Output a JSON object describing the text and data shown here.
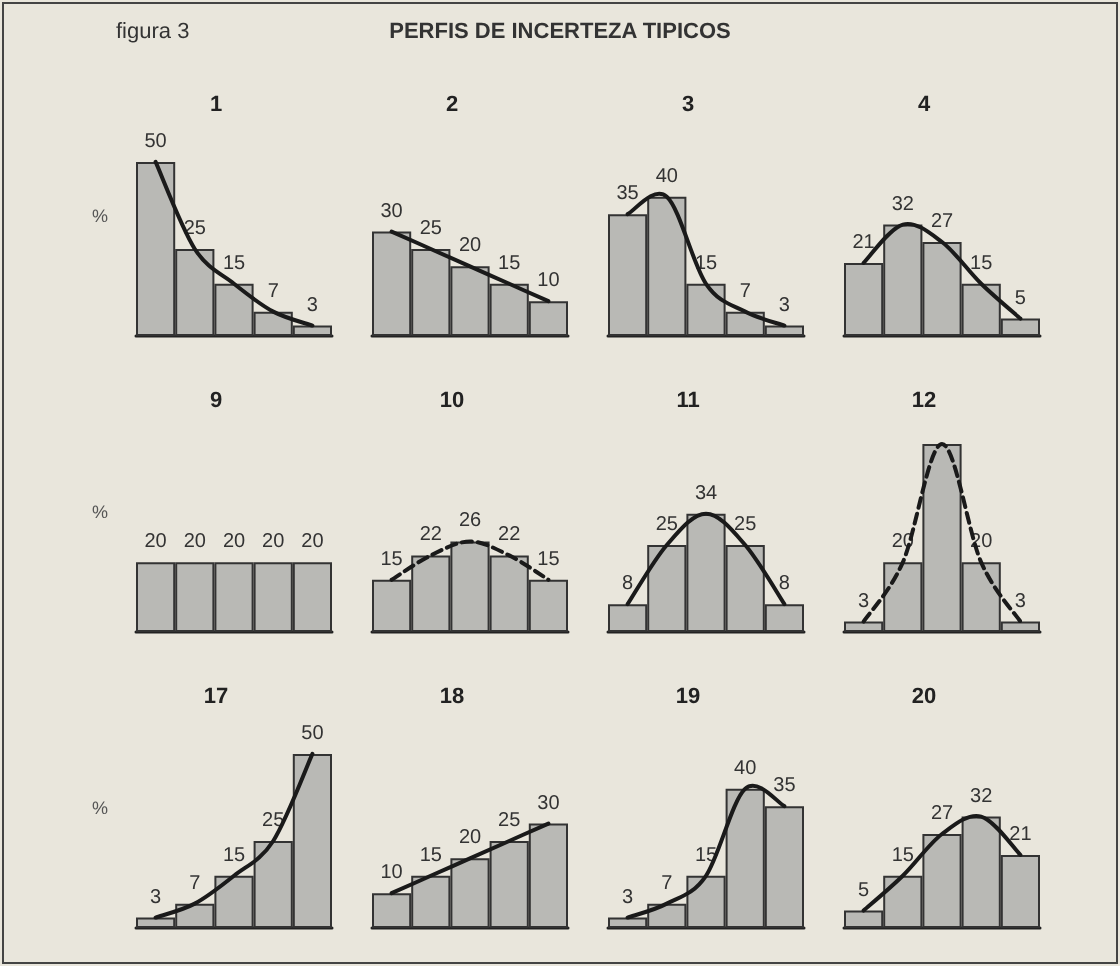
{
  "chart_data": [
    {
      "type": "bar",
      "title": "1",
      "ylabel": "%",
      "annotations": [
        "figura 3",
        "PERFIS DE INCERTEZA TIPICOS"
      ],
      "categories": [
        null,
        null,
        null,
        null,
        null
      ],
      "tick_labels": false,
      "line_style": "solid",
      "series": [
        {
          "color": "#b9b9b5",
          "values": [
            50,
            25,
            15,
            7,
            3
          ],
          "value_labels": [
            "50",
            "25",
            "15",
            "7",
            "3"
          ]
        }
      ]
    },
    {
      "type": "bar",
      "title": "2",
      "categories": [
        null,
        null,
        null,
        null,
        null
      ],
      "tick_labels": false,
      "line_style": "solid",
      "series": [
        {
          "color": "#b9b9b5",
          "values": [
            30,
            25,
            20,
            15,
            10
          ],
          "value_labels": [
            "30",
            "25",
            "20",
            "15",
            "10"
          ]
        }
      ]
    },
    {
      "type": "bar",
      "title": "3",
      "categories": [
        null,
        null,
        null,
        null,
        null
      ],
      "tick_labels": false,
      "line_style": "solid",
      "series": [
        {
          "color": "#b9b9b5",
          "values": [
            35,
            40,
            15,
            7,
            3
          ],
          "value_labels": [
            "35",
            "40",
            "15",
            "7",
            "3"
          ]
        }
      ]
    },
    {
      "type": "bar",
      "title": "4",
      "categories": [
        null,
        null,
        null,
        null,
        null
      ],
      "tick_labels": false,
      "line_style": "solid",
      "series": [
        {
          "color": "#b9b9b5",
          "values": [
            21,
            32,
            27,
            15,
            5
          ],
          "value_labels": [
            "21",
            "32",
            "27",
            "15",
            "5"
          ]
        }
      ]
    },
    {
      "type": "bar",
      "title": "9",
      "ylabel": "%",
      "categories": [
        null,
        null,
        null,
        null,
        null
      ],
      "tick_labels": false,
      "series": [
        {
          "color": "#b9b9b5",
          "values": [
            20,
            20,
            20,
            20,
            20
          ],
          "value_labels": [
            "20",
            "20",
            "20",
            "20",
            "20"
          ]
        }
      ]
    },
    {
      "type": "bar",
      "title": "10",
      "categories": [
        null,
        null,
        null,
        null,
        null
      ],
      "tick_labels": false,
      "line_style": "dashed",
      "series": [
        {
          "color": "#b9b9b5",
          "values": [
            15,
            22,
            26,
            22,
            15
          ],
          "value_labels": [
            "15",
            "22",
            "26",
            "22",
            "15"
          ]
        }
      ]
    },
    {
      "type": "bar",
      "title": "11",
      "categories": [
        null,
        null,
        null,
        null,
        null
      ],
      "tick_labels": false,
      "line_style": "solid",
      "series": [
        {
          "color": "#b9b9b5",
          "values": [
            8,
            25,
            34,
            25,
            8
          ],
          "value_labels": [
            "8",
            "25",
            "34",
            "25",
            "8"
          ]
        }
      ]
    },
    {
      "type": "bar",
      "title": "12",
      "categories": [
        null,
        null,
        null,
        null,
        null
      ],
      "tick_labels": false,
      "line_style": "dashed",
      "series": [
        {
          "color": "#b9b9b5",
          "values": [
            3,
            20,
            54,
            20,
            3
          ],
          "value_labels": [
            "3",
            "20",
            null,
            "20",
            "3"
          ]
        }
      ]
    },
    {
      "type": "bar",
      "title": "17",
      "ylabel": "%",
      "categories": [
        null,
        null,
        null,
        null,
        null
      ],
      "tick_labels": false,
      "line_style": "solid",
      "series": [
        {
          "color": "#b9b9b5",
          "values": [
            3,
            7,
            15,
            25,
            50
          ],
          "value_labels": [
            "3",
            "7",
            "15",
            "25",
            "50"
          ]
        }
      ]
    },
    {
      "type": "bar",
      "title": "18",
      "categories": [
        null,
        null,
        null,
        null,
        null
      ],
      "tick_labels": false,
      "line_style": "solid",
      "series": [
        {
          "color": "#b9b9b5",
          "values": [
            10,
            15,
            20,
            25,
            30
          ],
          "value_labels": [
            "10",
            "15",
            "20",
            "25",
            "30"
          ]
        }
      ]
    },
    {
      "type": "bar",
      "title": "19",
      "categories": [
        null,
        null,
        null,
        null,
        null
      ],
      "tick_labels": false,
      "line_style": "solid",
      "series": [
        {
          "color": "#b9b9b5",
          "values": [
            3,
            7,
            15,
            40,
            35
          ],
          "value_labels": [
            "3",
            "7",
            "15",
            "40",
            "35"
          ]
        }
      ]
    },
    {
      "type": "bar",
      "title": "20",
      "categories": [
        null,
        null,
        null,
        null,
        null
      ],
      "tick_labels": false,
      "line_style": "solid",
      "series": [
        {
          "color": "#b9b9b5",
          "values": [
            5,
            15,
            27,
            32,
            21
          ],
          "value_labels": [
            "5",
            "15",
            "27",
            "32",
            "21"
          ]
        }
      ]
    }
  ]
}
